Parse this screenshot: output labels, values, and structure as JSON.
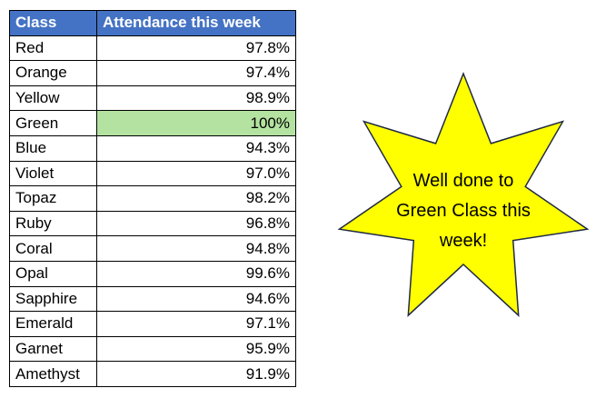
{
  "table": {
    "headers": [
      "Class",
      "Attendance this week"
    ],
    "rows": [
      {
        "class": "Red",
        "attendance": "97.8%"
      },
      {
        "class": "Orange",
        "attendance": "97.4%"
      },
      {
        "class": "Yellow",
        "attendance": "98.9%"
      },
      {
        "class": "Green",
        "attendance": "100%"
      },
      {
        "class": "Blue",
        "attendance": "94.3%"
      },
      {
        "class": "Violet",
        "attendance": "97.0%"
      },
      {
        "class": "Topaz",
        "attendance": "98.2%"
      },
      {
        "class": "Ruby",
        "attendance": "96.8%"
      },
      {
        "class": "Coral",
        "attendance": "94.8%"
      },
      {
        "class": "Opal",
        "attendance": "99.6%"
      },
      {
        "class": "Sapphire",
        "attendance": "94.6%"
      },
      {
        "class": "Emerald",
        "attendance": "97.1%"
      },
      {
        "class": "Garnet",
        "attendance": "95.9%"
      },
      {
        "class": "Amethyst",
        "attendance": "91.9%"
      }
    ],
    "highlighted_class": "Green",
    "header_color": "#4472c4",
    "highlight_color": "#b4e2a0"
  },
  "callout": {
    "shape": "seven-point-star",
    "text_lines": [
      "Well done to",
      "Green Class this",
      "week!"
    ],
    "fill_color": "#ffff00",
    "outline_color": "#1f2a44"
  }
}
